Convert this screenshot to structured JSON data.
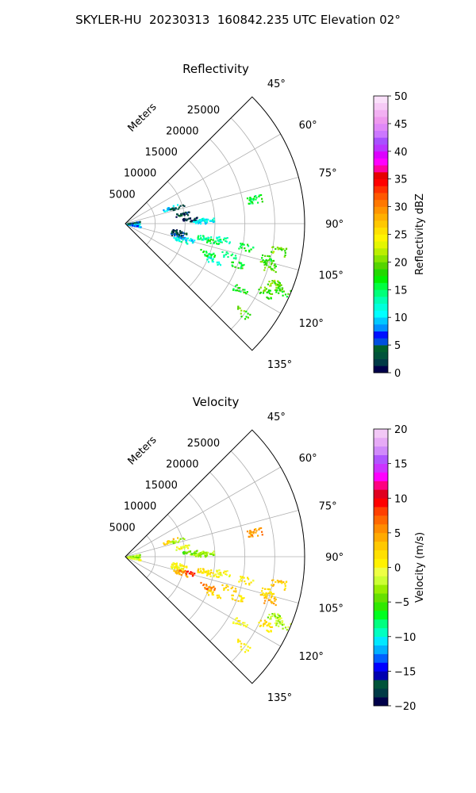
{
  "figure": {
    "suptitle": "SKYLER-HU  20230313  160842.235 UTC Elevation 02°"
  },
  "chart_data": [
    {
      "type": "polar-sector",
      "title": "Reflectivity",
      "radial_label": "Meters",
      "radial_ticks": [
        5000,
        10000,
        15000,
        20000,
        25000
      ],
      "radial_tick_labels": [
        "5000",
        "10000",
        "15000",
        "20000",
        "25000"
      ],
      "rmax": 30000,
      "theta_ticks": [
        45,
        60,
        75,
        90,
        105,
        120,
        135
      ],
      "theta_tick_labels": [
        "45°",
        "60°",
        "75°",
        "90°",
        "105°",
        "120°",
        "135°"
      ],
      "theta_range": [
        45,
        135
      ],
      "grid": true,
      "colorbar": {
        "label": "Reflectivity dBZ",
        "range": [
          0,
          50
        ],
        "ticks": [
          "0",
          "5",
          "10",
          "15",
          "20",
          "25",
          "30",
          "35",
          "40",
          "45",
          "50"
        ],
        "colormap": "NWSRef"
      },
      "echo_clusters": [
        {
          "az": 92,
          "r": 600,
          "value": 3
        },
        {
          "az": 96,
          "r": 900,
          "value": 2
        },
        {
          "az": 88,
          "r": 1100,
          "value": 10
        },
        {
          "az": 100,
          "r": 1200,
          "value": 9
        },
        {
          "az": 80,
          "r": 1300,
          "value": 4
        },
        {
          "az": 70,
          "r": 8000,
          "value": 10
        },
        {
          "az": 72,
          "r": 9000,
          "value": 4
        },
        {
          "az": 80,
          "r": 9500,
          "value": 3
        },
        {
          "az": 86,
          "r": 10800,
          "value": 2
        },
        {
          "az": 88,
          "r": 12500,
          "value": 10
        },
        {
          "az": 87,
          "r": 13500,
          "value": 11
        },
        {
          "az": 98,
          "r": 9000,
          "value": 3
        },
        {
          "az": 102,
          "r": 8800,
          "value": 4
        },
        {
          "az": 106,
          "r": 9500,
          "value": 12
        },
        {
          "az": 104,
          "r": 10500,
          "value": 10
        },
        {
          "az": 100,
          "r": 13500,
          "value": 14
        },
        {
          "az": 101,
          "r": 15000,
          "value": 16
        },
        {
          "az": 99,
          "r": 16500,
          "value": 13
        },
        {
          "az": 110,
          "r": 14500,
          "value": 16
        },
        {
          "az": 113,
          "r": 16000,
          "value": 12
        },
        {
          "az": 107,
          "r": 18000,
          "value": 15
        },
        {
          "az": 110,
          "r": 20000,
          "value": 17
        },
        {
          "az": 101,
          "r": 20500,
          "value": 16
        },
        {
          "az": 104,
          "r": 24500,
          "value": 18
        },
        {
          "az": 100,
          "r": 26000,
          "value": 20
        },
        {
          "az": 107,
          "r": 25000,
          "value": 19
        },
        {
          "az": 112,
          "r": 27000,
          "value": 20
        },
        {
          "az": 116,
          "r": 26000,
          "value": 19
        },
        {
          "az": 113,
          "r": 28500,
          "value": 18
        },
        {
          "az": 127,
          "r": 24500,
          "value": 19
        },
        {
          "az": 120,
          "r": 22000,
          "value": 17
        },
        {
          "az": 79,
          "r": 22000,
          "value": 16
        }
      ]
    },
    {
      "type": "polar-sector",
      "title": "Velocity",
      "radial_label": "Meters",
      "radial_ticks": [
        5000,
        10000,
        15000,
        20000,
        25000
      ],
      "radial_tick_labels": [
        "5000",
        "10000",
        "15000",
        "20000",
        "25000"
      ],
      "rmax": 30000,
      "theta_ticks": [
        45,
        60,
        75,
        90,
        105,
        120,
        135
      ],
      "theta_tick_labels": [
        "45°",
        "60°",
        "75°",
        "90°",
        "105°",
        "120°",
        "135°"
      ],
      "theta_range": [
        45,
        135
      ],
      "grid": true,
      "colorbar": {
        "label": "Velocity (m/s)",
        "range": [
          -20,
          20
        ],
        "ticks": [
          "−20",
          "−15",
          "−10",
          "−5",
          "0",
          "5",
          "10",
          "15",
          "20"
        ],
        "colormap": "NWSVel"
      },
      "echo_clusters": [
        {
          "az": 92,
          "r": 600,
          "value": -3
        },
        {
          "az": 96,
          "r": 900,
          "value": -2
        },
        {
          "az": 88,
          "r": 1100,
          "value": -4
        },
        {
          "az": 100,
          "r": 1200,
          "value": 0
        },
        {
          "az": 80,
          "r": 1300,
          "value": -3
        },
        {
          "az": 70,
          "r": 8000,
          "value": 3
        },
        {
          "az": 72,
          "r": 9000,
          "value": -2
        },
        {
          "az": 80,
          "r": 9500,
          "value": 0
        },
        {
          "az": 86,
          "r": 10800,
          "value": -4
        },
        {
          "az": 88,
          "r": 12500,
          "value": -3
        },
        {
          "az": 87,
          "r": 13500,
          "value": -3
        },
        {
          "az": 98,
          "r": 9000,
          "value": 1
        },
        {
          "az": 102,
          "r": 8800,
          "value": 0
        },
        {
          "az": 106,
          "r": 9500,
          "value": 4
        },
        {
          "az": 104,
          "r": 10500,
          "value": 8
        },
        {
          "az": 100,
          "r": 13500,
          "value": 2
        },
        {
          "az": 101,
          "r": 15000,
          "value": 1
        },
        {
          "az": 99,
          "r": 16500,
          "value": 0
        },
        {
          "az": 110,
          "r": 14500,
          "value": 6
        },
        {
          "az": 113,
          "r": 16000,
          "value": 2
        },
        {
          "az": 107,
          "r": 18000,
          "value": 3
        },
        {
          "az": 110,
          "r": 20000,
          "value": 2
        },
        {
          "az": 101,
          "r": 20500,
          "value": 1
        },
        {
          "az": 104,
          "r": 24500,
          "value": 2
        },
        {
          "az": 100,
          "r": 26000,
          "value": 3
        },
        {
          "az": 107,
          "r": 25000,
          "value": 4
        },
        {
          "az": 112,
          "r": 27000,
          "value": -3
        },
        {
          "az": 116,
          "r": 26000,
          "value": 2
        },
        {
          "az": 113,
          "r": 28500,
          "value": -2
        },
        {
          "az": 127,
          "r": 24500,
          "value": 1
        },
        {
          "az": 120,
          "r": 22000,
          "value": 0
        },
        {
          "az": 79,
          "r": 22000,
          "value": 5
        }
      ]
    }
  ]
}
